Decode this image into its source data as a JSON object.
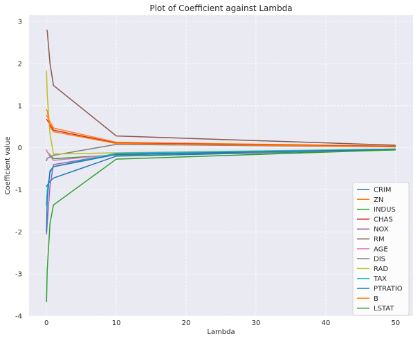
{
  "chart_data": {
    "type": "line",
    "title": "Plot of Coefficient against Lambda",
    "xlabel": "Lambda",
    "ylabel": "Coefficient value",
    "xlim": [
      -2.5,
      52.5
    ],
    "ylim": [
      -4,
      3.15
    ],
    "xticks": [
      0,
      10,
      20,
      30,
      40,
      50
    ],
    "yticks": [
      -4,
      -3,
      -2,
      -1,
      0,
      1,
      2,
      3
    ],
    "grid": true,
    "legend_position": "lower right",
    "x": [
      0,
      0.01,
      0.1,
      0.5,
      1,
      10,
      50
    ],
    "series": [
      {
        "name": "CRIM",
        "color": "#1f77b4",
        "values": [
          -0.93,
          -0.92,
          -0.89,
          -0.8,
          -0.72,
          -0.2,
          -0.05
        ]
      },
      {
        "name": "ZN",
        "color": "#ff7f0e",
        "values": [
          0.78,
          0.77,
          0.74,
          0.62,
          0.47,
          0.13,
          0.04
        ]
      },
      {
        "name": "INDUS",
        "color": "#2ca02c",
        "values": [
          -0.06,
          -0.06,
          -0.1,
          -0.17,
          -0.26,
          -0.17,
          -0.05
        ]
      },
      {
        "name": "CHAS",
        "color": "#d62728",
        "values": [
          0.68,
          0.67,
          0.66,
          0.55,
          0.42,
          0.11,
          0.03
        ]
      },
      {
        "name": "NOX",
        "color": "#9467bd",
        "values": [
          -2.06,
          -2.03,
          -1.8,
          -0.9,
          -0.4,
          -0.15,
          -0.04
        ]
      },
      {
        "name": "RM",
        "color": "#8c564b",
        "values": [
          2.8,
          2.8,
          2.78,
          2.0,
          1.48,
          0.28,
          0.06
        ]
      },
      {
        "name": "AGE",
        "color": "#e377c2",
        "values": [
          -0.04,
          -0.05,
          -0.1,
          -0.2,
          -0.3,
          -0.16,
          -0.05
        ]
      },
      {
        "name": "DIS",
        "color": "#7f7f7f",
        "values": [
          -0.32,
          -0.3,
          -0.25,
          -0.22,
          -0.18,
          0.08,
          0.02
        ]
      },
      {
        "name": "RAD",
        "color": "#bcbd22",
        "values": [
          1.83,
          1.77,
          1.25,
          0.33,
          -0.15,
          -0.12,
          -0.03
        ]
      },
      {
        "name": "TAX",
        "color": "#17becf",
        "values": [
          -1.38,
          -1.3,
          -1.0,
          -0.6,
          -0.45,
          -0.13,
          -0.03
        ]
      },
      {
        "name": "PTRATIO",
        "color": "#1f77b4",
        "values": [
          -2.0,
          -1.9,
          -1.2,
          -0.55,
          -0.45,
          -0.16,
          -0.04
        ]
      },
      {
        "name": "B",
        "color": "#ff7f0e",
        "values": [
          0.92,
          0.9,
          0.88,
          0.5,
          0.38,
          0.1,
          0.02
        ]
      },
      {
        "name": "LSTAT",
        "color": "#2ca02c",
        "values": [
          -3.67,
          -3.6,
          -2.9,
          -1.8,
          -1.36,
          -0.27,
          -0.05
        ]
      }
    ]
  }
}
